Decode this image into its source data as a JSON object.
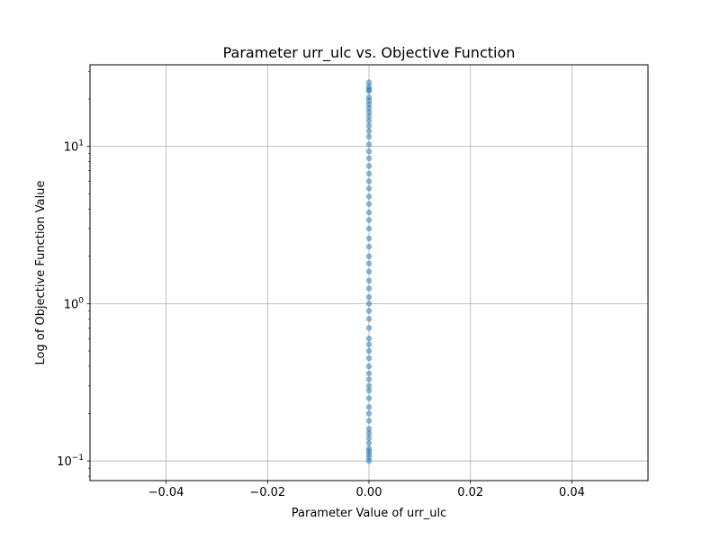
{
  "chart_data": {
    "type": "scatter",
    "title": "Parameter urr_ulc vs. Objective Function",
    "xlabel": "Parameter Value of urr_ulc",
    "ylabel": "Log of Objective Function Value",
    "xlim": [
      -0.055,
      0.055
    ],
    "ylim": [
      0.075,
      33
    ],
    "yscale": "log",
    "grid": true,
    "x_ticks": [
      {
        "value": -0.04,
        "label": "−0.04"
      },
      {
        "value": -0.02,
        "label": "−0.02"
      },
      {
        "value": 0.0,
        "label": "0.00"
      },
      {
        "value": 0.02,
        "label": "0.02"
      },
      {
        "value": 0.04,
        "label": "0.04"
      }
    ],
    "y_ticks": [
      {
        "value": 0.1,
        "base": "10",
        "exp": "−1"
      },
      {
        "value": 1,
        "base": "10",
        "exp": "0"
      },
      {
        "value": 10,
        "base": "10",
        "exp": "1"
      }
    ],
    "marker_color": "#1f77b4",
    "series": [
      {
        "x": [
          0,
          0,
          0,
          0,
          0,
          0,
          0,
          0,
          0,
          0,
          0,
          0,
          0,
          0,
          0,
          0,
          0,
          0,
          0,
          0,
          0,
          0,
          0,
          0,
          0,
          0,
          0,
          0,
          0,
          0,
          0,
          0,
          0,
          0,
          0,
          0,
          0,
          0,
          0,
          0,
          0,
          0,
          0,
          0,
          0,
          0,
          0,
          0,
          0,
          0,
          0,
          0,
          0,
          0,
          0,
          0,
          0,
          0,
          0,
          0
        ],
        "y": [
          0.1,
          0.105,
          0.11,
          0.115,
          0.12,
          0.13,
          0.14,
          0.15,
          0.16,
          0.18,
          0.2,
          0.22,
          0.25,
          0.28,
          0.3,
          0.33,
          0.36,
          0.4,
          0.45,
          0.5,
          0.55,
          0.6,
          0.7,
          0.8,
          0.9,
          1.0,
          1.1,
          1.25,
          1.4,
          1.6,
          1.8,
          2.0,
          2.3,
          2.6,
          3.0,
          3.4,
          3.8,
          4.3,
          4.8,
          5.4,
          6.0,
          6.7,
          7.5,
          8.4,
          9.3,
          10.3,
          11.5,
          12.5,
          13.5,
          14.5,
          15.5,
          16.5,
          17.5,
          18.5,
          19.5,
          20.5,
          22.5,
          23.0,
          24.0,
          25.5
        ]
      }
    ]
  }
}
